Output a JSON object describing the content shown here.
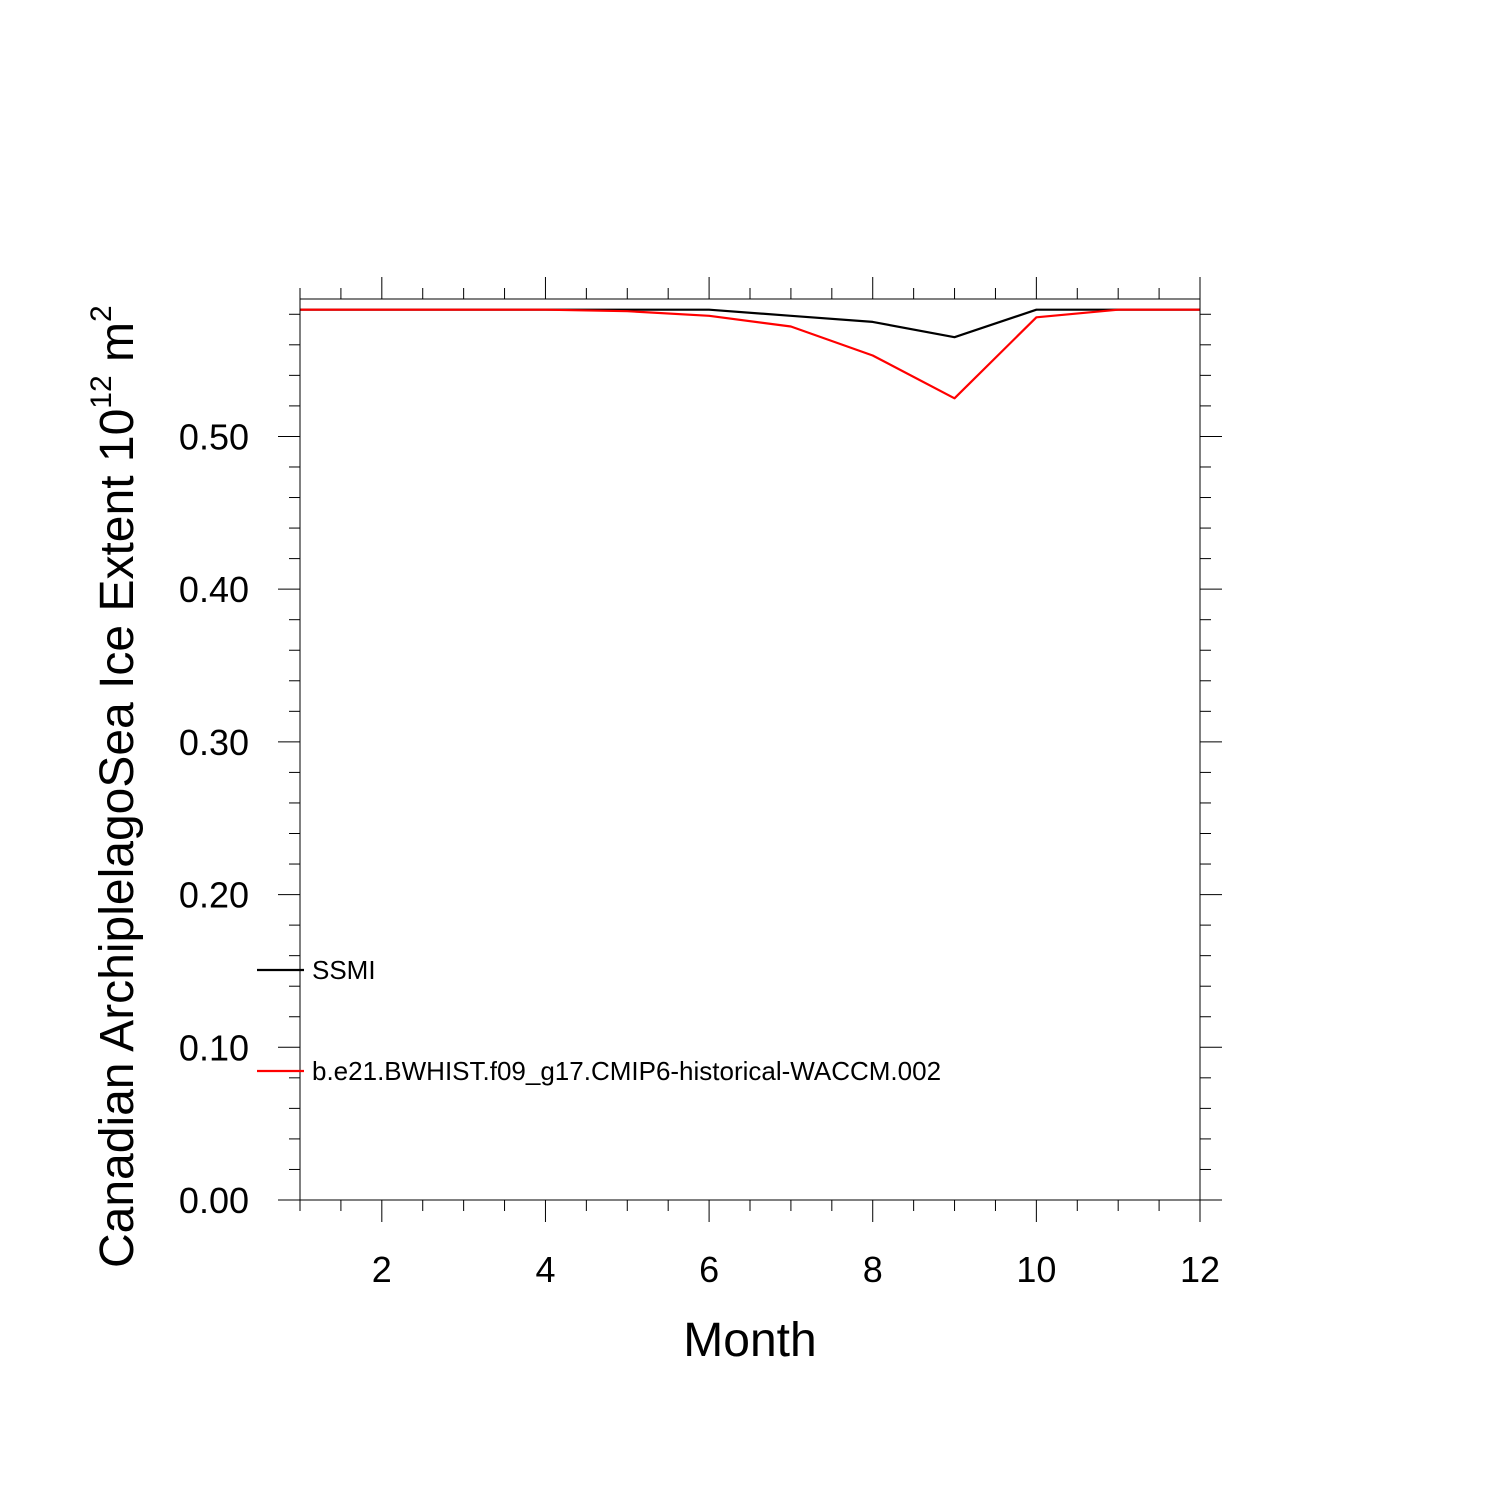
{
  "chart_data": {
    "type": "line",
    "title": "",
    "xlabel": "Month",
    "ylabel": {
      "text": "Canadian ArchiplelagoSea Ice Extent 10",
      "superscript1": "12",
      "unit": " m",
      "superscript2": "2"
    },
    "xlim": [
      1,
      12
    ],
    "ylim": [
      0,
      0.59
    ],
    "xticks": [
      2,
      4,
      6,
      8,
      10,
      12
    ],
    "xtick_labels": [
      "2",
      "4",
      "6",
      "8",
      "10",
      "12"
    ],
    "yticks": [
      0.0,
      0.1,
      0.2,
      0.3,
      0.4,
      0.5
    ],
    "ytick_labels": [
      "0.00",
      "0.10",
      "0.20",
      "0.30",
      "0.40",
      "0.50"
    ],
    "grid": false,
    "legend_position": "lower-left",
    "series": [
      {
        "name": "SSMI",
        "color": "#000000",
        "x": [
          1,
          2,
          3,
          4,
          5,
          6,
          7,
          8,
          9,
          10,
          11,
          12
        ],
        "y": [
          0.583,
          0.583,
          0.583,
          0.583,
          0.583,
          0.583,
          0.579,
          0.575,
          0.565,
          0.583,
          0.583,
          0.583
        ]
      },
      {
        "name": "b.e21.BWHIST.f09_g17.CMIP6-historical-WACCM.002",
        "color": "#ff0000",
        "x": [
          1,
          2,
          3,
          4,
          5,
          6,
          7,
          8,
          9,
          10,
          11,
          12
        ],
        "y": [
          0.583,
          0.583,
          0.583,
          0.583,
          0.582,
          0.579,
          0.572,
          0.553,
          0.525,
          0.578,
          0.583,
          0.583
        ]
      }
    ]
  }
}
